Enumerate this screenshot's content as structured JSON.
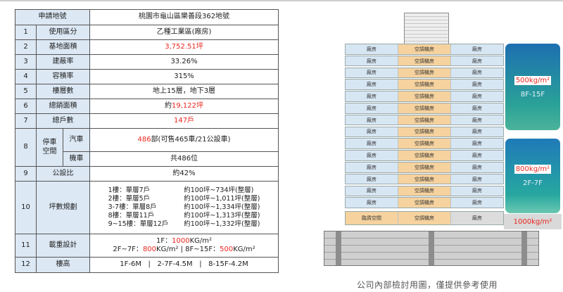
{
  "table": {
    "header": {
      "label": "申請地號",
      "value": "桃園市龜山區樂善段362地號"
    },
    "rows": [
      {
        "num": "1",
        "label": "使用區分",
        "value": "乙種工業區(廠房)"
      },
      {
        "num": "2",
        "label": "基地面積",
        "value": "3,752.51坪"
      },
      {
        "num": "3",
        "label": "建蔽率",
        "value": "33.26%"
      },
      {
        "num": "4",
        "label": "容積率",
        "value": "315%"
      },
      {
        "num": "5",
        "label": "樓層數",
        "value": "地上15層，地下3層"
      },
      {
        "num": "6",
        "label": "總銷面積",
        "value_prefix": "約",
        "value": "19,122坪"
      },
      {
        "num": "7",
        "label": "總戶數",
        "value": "147戶"
      },
      {
        "num": "8",
        "label_line1": "停車",
        "label_line2": "空間",
        "car_label": "汽車",
        "car_value_red": "486",
        "car_value_rest": "部(可售465車/21公設車)",
        "moto_label": "機車",
        "moto_value": "共486位"
      },
      {
        "num": "9",
        "label": "公設比",
        "value": "約42%"
      },
      {
        "num": "10",
        "label": "坪數規劃",
        "floors": [
          "1樓：單層7戶",
          "2樓：單層5戶",
          "3-7樓：單層8戶",
          "8樓：單層11戶",
          "9~15樓：單層12戶"
        ],
        "sizes": [
          "約100坪~734坪(整層)",
          "約100坪~1,011坪(整層)",
          "約100坪~1,334坪(整層)",
          "約100坪~1,313坪(整層)",
          "約100坪~1,332坪(整層)"
        ]
      },
      {
        "num": "11",
        "label": "載重設計",
        "line1_a": "1F：",
        "line1_b": "1000",
        "line1_c": "KG/m²",
        "line2_a": "2F~7F：",
        "line2_b": "800",
        "line2_c": "KG/m² | 8F~15F：",
        "line2_d": "500",
        "line2_e": "KG/m²"
      },
      {
        "num": "12",
        "label": "樓高",
        "value": "1F-6M   |   2-7F-4.5M   |   8-15F-4.2M"
      }
    ]
  },
  "building": {
    "cell_labels": {
      "left": "廠房",
      "mid": "空調機房",
      "right": "廠房"
    },
    "ground_labels": {
      "left": "臨貨空間",
      "mid": "空調機房",
      "right": "廠房"
    },
    "badges": [
      {
        "load": "500kg/m²",
        "range": "8F-15F"
      },
      {
        "load": "800kg/m²",
        "range": "2F-7F"
      },
      {
        "load": "1000kg/m²"
      }
    ]
  },
  "caption": "公司內部檢討用圖，僅提供參考使用"
}
